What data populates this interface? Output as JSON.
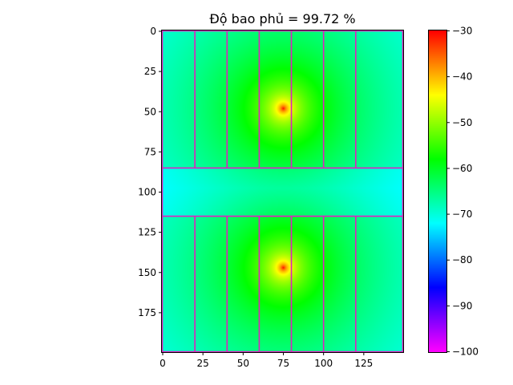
{
  "chart_data": [
    {
      "type": "heatmap",
      "title": "Độ bao phủ = 99.72 %",
      "xlabel": "",
      "ylabel": "",
      "xlim": [
        0,
        149
      ],
      "ylim": [
        199,
        0
      ],
      "x_ticks": [
        0,
        25,
        50,
        75,
        100,
        125
      ],
      "y_ticks": [
        0,
        25,
        50,
        75,
        100,
        125,
        150,
        175
      ],
      "grid": false,
      "colormap": "gist_rainbow (reversed)",
      "value_range": [
        -100,
        -30
      ],
      "sources": [
        {
          "x": 75,
          "y": 48,
          "value": -30
        },
        {
          "x": 75,
          "y": 147,
          "value": -30
        }
      ],
      "room_boundaries": {
        "color": "#e020c0",
        "horizontal_lines_y": [
          0,
          85,
          115,
          199
        ],
        "vertical_lines_x": [
          0,
          20,
          40,
          60,
          80,
          100,
          120,
          149
        ]
      }
    },
    {
      "type": "colorbar",
      "ticks": [
        -30,
        -40,
        -50,
        -60,
        -70,
        -80,
        -90,
        -100
      ],
      "range": [
        -100,
        -30
      ]
    }
  ]
}
